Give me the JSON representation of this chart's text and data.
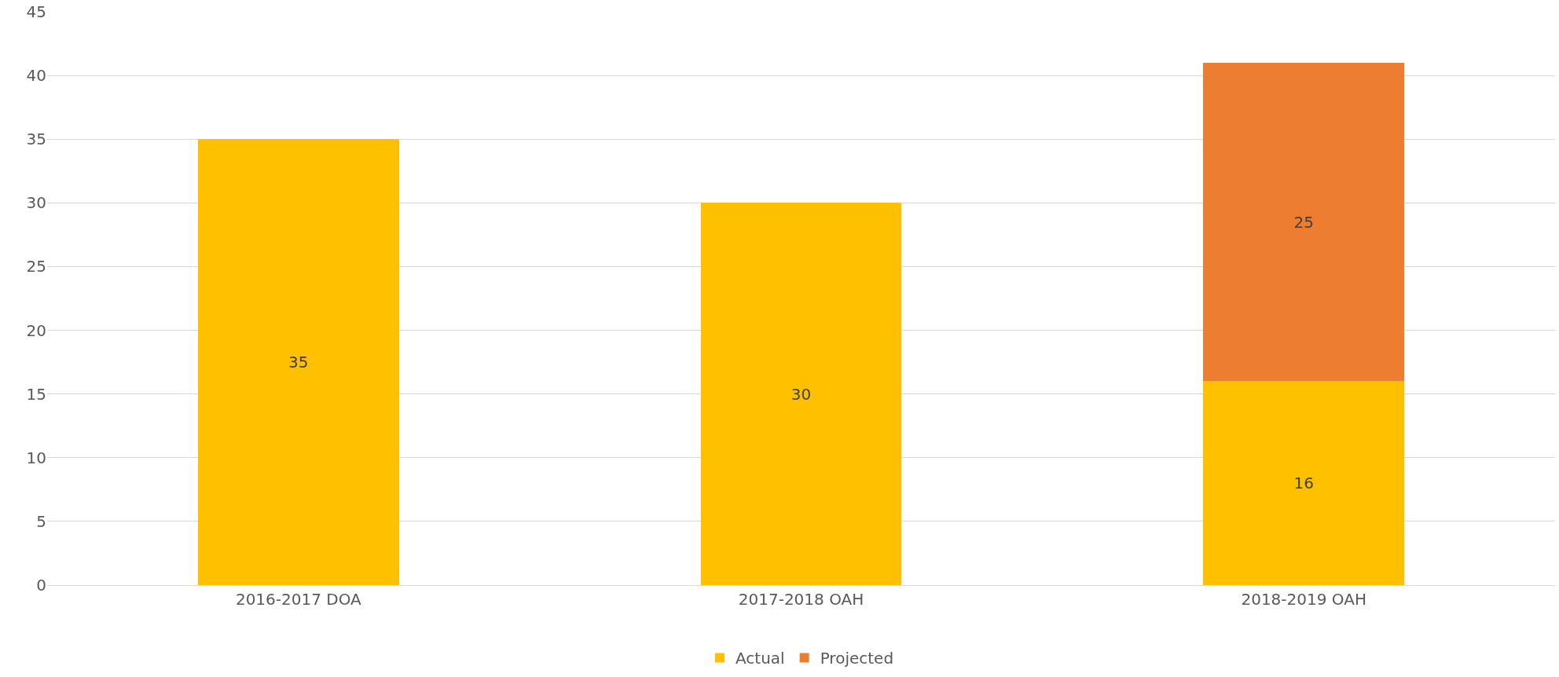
{
  "chart_data": {
    "type": "bar",
    "stacked": true,
    "categories": [
      "2016-2017 DOA",
      "2017-2018 OAH",
      "2018-2019 OAH"
    ],
    "series": [
      {
        "name": "Actual",
        "color": "#ffc000",
        "values": [
          35,
          30,
          16
        ]
      },
      {
        "name": "Projected",
        "color": "#ed7d31",
        "values": [
          null,
          null,
          25
        ]
      }
    ],
    "ylim": [
      0,
      45
    ],
    "yticks": [
      0,
      5,
      10,
      15,
      20,
      25,
      30,
      35,
      40,
      45
    ],
    "grid": "y",
    "legend": "bottom",
    "data_labels": true
  }
}
